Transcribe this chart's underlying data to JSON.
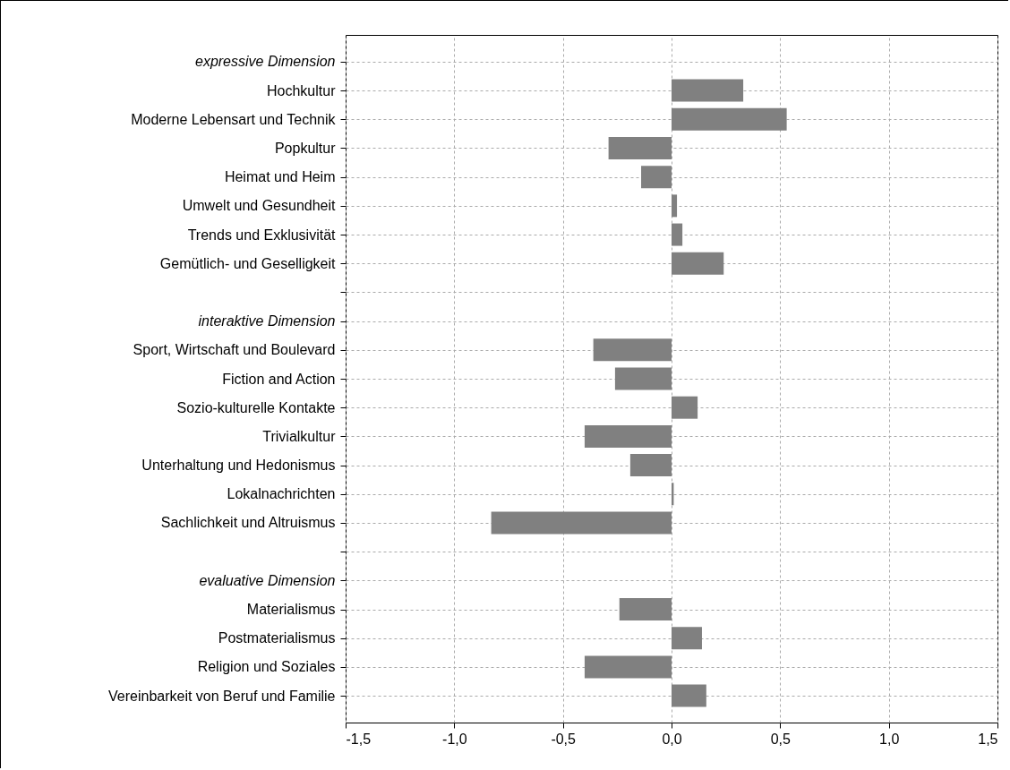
{
  "chart_data": {
    "type": "bar",
    "orientation": "horizontal",
    "categories": [
      "expressive Dimension",
      "Hochkultur",
      "Moderne Lebensart und Technik",
      "Popkultur",
      "Heimat und Heim",
      "Umwelt und Gesundheit",
      "Trends und Exklusivität",
      "Gemütlich- und Geselligkeit",
      null,
      "interaktive Dimension",
      "Sport, Wirtschaft und Boulevard",
      "Fiction and Action",
      "Sozio-kulturelle Kontakte",
      "Trivialkultur",
      "Unterhaltung und Hedonismus",
      "Lokalnachrichten",
      "Sachlichkeit und Altruismus",
      null,
      "evaluative Dimension",
      "Materialismus",
      "Postmaterialismus",
      "Religion und Soziales",
      "Vereinbarkeit von Beruf und Familie"
    ],
    "values": [
      null,
      0.33,
      0.53,
      -0.29,
      -0.14,
      0.025,
      0.05,
      0.24,
      null,
      null,
      -0.36,
      -0.26,
      0.12,
      -0.4,
      -0.19,
      0.01,
      -0.83,
      null,
      null,
      -0.24,
      0.14,
      -0.4,
      0.16
    ],
    "color": "#808080",
    "xlim": [
      -1.5,
      1.5
    ],
    "xticks": [
      {
        "value": -1.5,
        "label": "-1,5"
      },
      {
        "value": -1,
        "label": "-1,0"
      },
      {
        "value": -0.5,
        "label": "-0,5"
      },
      {
        "value": 0,
        "label": "0,0"
      },
      {
        "value": 0.5,
        "label": "0,5"
      },
      {
        "value": 1,
        "label": "1,0"
      },
      {
        "value": 1.5,
        "label": "1,5"
      }
    ],
    "grid": true
  }
}
